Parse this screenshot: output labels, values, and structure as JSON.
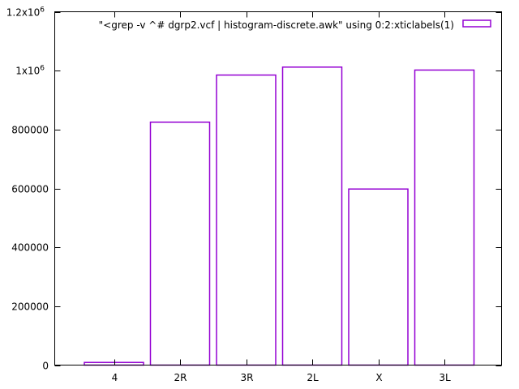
{
  "chart_data": {
    "type": "bar",
    "title": "",
    "xlabel": "",
    "ylabel": "",
    "categories": [
      "4",
      "2R",
      "3R",
      "2L",
      "X",
      "3L"
    ],
    "series": [
      {
        "name": "\"<grep -v ^# dgrp2.vcf | histogram-discrete.awk\" using 0:2:xticlabels(1)",
        "values": [
          9000,
          825000,
          985000,
          1012000,
          598000,
          1002000
        ],
        "color": "#9400d3"
      }
    ],
    "ylim": [
      0,
      1200000
    ],
    "yticks": [
      {
        "value": 0,
        "label": "0"
      },
      {
        "value": 200000,
        "label": "200000"
      },
      {
        "value": 400000,
        "label": "400000"
      },
      {
        "value": 600000,
        "label": "600000"
      },
      {
        "value": 800000,
        "label": "800000"
      },
      {
        "value": 1000000,
        "label": "1x10",
        "exp": "6"
      },
      {
        "value": 1200000,
        "label": "1.2x10",
        "exp": "6"
      }
    ],
    "legend_position": "top-right",
    "grid": false
  }
}
